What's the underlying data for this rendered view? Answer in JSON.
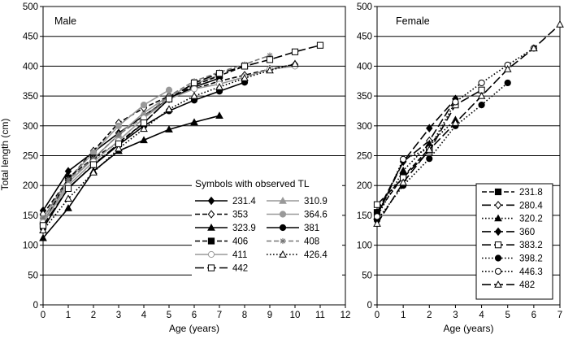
{
  "ylabel": "Total length (cm)",
  "chart_data": [
    {
      "type": "line",
      "panel_label": "Male",
      "xlabel": "Age (years)",
      "xlim": [
        0,
        12
      ],
      "ylim": [
        0,
        500
      ],
      "x_ticks": [
        0,
        1,
        2,
        3,
        4,
        5,
        6,
        7,
        8,
        9,
        10,
        11,
        12
      ],
      "y_ticks": [
        0,
        50,
        100,
        150,
        200,
        250,
        300,
        350,
        400,
        450,
        500
      ],
      "grid": "horizontal",
      "legend_title": "Symbols with observed TL",
      "legend_position": "bottom-right",
      "series": [
        {
          "name": "231.4",
          "marker": "diamond-filled",
          "dash": "solid",
          "color": "#000000",
          "x": [
            0,
            1,
            2,
            3,
            4,
            5,
            6,
            7
          ],
          "y": [
            158,
            224,
            256,
            288,
            317,
            345,
            365,
            380
          ]
        },
        {
          "name": "310.9",
          "marker": "triangle-filled",
          "dash": "solid",
          "color": "#999999",
          "x": [
            0,
            1,
            2,
            3,
            4,
            5,
            6,
            7
          ],
          "y": [
            140,
            205,
            245,
            285,
            322,
            350,
            370,
            385
          ]
        },
        {
          "name": "353",
          "marker": "diamond-open",
          "dash": "dashed",
          "color": "#000000",
          "x": [
            0,
            1,
            2,
            3,
            4,
            5,
            6,
            7,
            8,
            9,
            10
          ],
          "y": [
            152,
            210,
            258,
            305,
            330,
            350,
            362,
            375,
            385,
            395,
            403
          ]
        },
        {
          "name": "364.6",
          "marker": "circle-filled",
          "dash": "solid",
          "color": "#999999",
          "x": [
            0,
            1,
            2,
            3,
            4,
            5
          ],
          "y": [
            145,
            210,
            255,
            300,
            335,
            360
          ]
        },
        {
          "name": "323.9",
          "marker": "triangle-filled",
          "dash": "solid",
          "color": "#000000",
          "x": [
            0,
            1,
            2,
            3,
            4,
            5,
            6,
            7
          ],
          "y": [
            112,
            162,
            224,
            258,
            276,
            294,
            306,
            317
          ]
        },
        {
          "name": "381",
          "marker": "circle-filled",
          "dash": "solid",
          "color": "#000000",
          "x": [
            0,
            1,
            2,
            3,
            4,
            5,
            6,
            7,
            8
          ],
          "y": [
            128,
            196,
            234,
            268,
            300,
            325,
            343,
            358,
            373
          ]
        },
        {
          "name": "406",
          "marker": "square-filled",
          "dash": "dashed",
          "color": "#000000",
          "x": [
            0,
            1,
            2,
            3,
            4,
            5,
            6,
            7,
            8
          ],
          "y": [
            135,
            213,
            246,
            272,
            305,
            345,
            368,
            384,
            400
          ]
        },
        {
          "name": "408",
          "marker": "asterisk",
          "dash": "dashed",
          "color": "#777777",
          "x": [
            0,
            1,
            2,
            3,
            4,
            5,
            6,
            7,
            8,
            9
          ],
          "y": [
            145,
            210,
            245,
            285,
            315,
            350,
            375,
            390,
            403,
            418
          ]
        },
        {
          "name": "411",
          "marker": "circle-open",
          "dash": "solid",
          "color": "#999999",
          "x": [
            0,
            1,
            2,
            3,
            4,
            5,
            6,
            7,
            8,
            9,
            10
          ],
          "y": [
            138,
            200,
            240,
            275,
            313,
            345,
            362,
            370,
            382,
            395,
            400
          ]
        },
        {
          "name": "426.4",
          "marker": "triangle-open",
          "dash": "dotted",
          "color": "#000000",
          "x": [
            0,
            1,
            2,
            3,
            4,
            5,
            6,
            7,
            8,
            9,
            10
          ],
          "y": [
            125,
            178,
            222,
            262,
            295,
            328,
            350,
            365,
            380,
            393,
            404
          ]
        },
        {
          "name": "442",
          "marker": "square-open",
          "dash": "long-dash",
          "color": "#000000",
          "x": [
            0,
            1,
            2,
            3,
            4,
            5,
            6,
            7,
            8,
            9,
            10,
            11
          ],
          "y": [
            133,
            195,
            235,
            270,
            305,
            345,
            372,
            388,
            400,
            411,
            424,
            435
          ]
        }
      ]
    },
    {
      "type": "line",
      "panel_label": "Female",
      "xlabel": "Age (years)",
      "xlim": [
        0,
        7
      ],
      "ylim": [
        0,
        500
      ],
      "x_ticks": [
        0,
        1,
        2,
        3,
        4,
        5,
        6,
        7
      ],
      "y_ticks": [
        0,
        50,
        100,
        150,
        200,
        250,
        300,
        350,
        400,
        450,
        500
      ],
      "grid": "horizontal",
      "legend_position": "bottom-right",
      "series": [
        {
          "name": "231.8",
          "marker": "square-filled",
          "dash": "dashed",
          "color": "#000000",
          "x": [
            0,
            1,
            2
          ],
          "y": [
            155,
            215,
            262
          ]
        },
        {
          "name": "280.4",
          "marker": "diamond-open",
          "dash": "long-dash",
          "color": "#000000",
          "x": [
            0,
            1,
            2,
            3
          ],
          "y": [
            150,
            240,
            275,
            345
          ]
        },
        {
          "name": "320.2",
          "marker": "triangle-filled",
          "dash": "dotted",
          "color": "#000000",
          "x": [
            0,
            1,
            2,
            3
          ],
          "y": [
            148,
            225,
            270,
            310
          ]
        },
        {
          "name": "360",
          "marker": "diamond-filled",
          "dash": "long-dash",
          "color": "#000000",
          "x": [
            0,
            1,
            2,
            3
          ],
          "y": [
            155,
            240,
            296,
            345
          ]
        },
        {
          "name": "383.2",
          "marker": "square-open",
          "dash": "long-dash",
          "color": "#000000",
          "x": [
            0,
            1,
            2,
            3,
            4
          ],
          "y": [
            168,
            213,
            258,
            335,
            360
          ]
        },
        {
          "name": "398.2",
          "marker": "circle-filled",
          "dash": "dotted",
          "color": "#000000",
          "x": [
            0,
            1,
            2,
            3,
            4,
            5
          ],
          "y": [
            142,
            200,
            245,
            300,
            335,
            372
          ]
        },
        {
          "name": "446.3",
          "marker": "circle-open",
          "dash": "dotted",
          "color": "#000000",
          "x": [
            0,
            1,
            2,
            3,
            4,
            5,
            6
          ],
          "y": [
            148,
            244,
            262,
            340,
            372,
            402,
            430
          ]
        },
        {
          "name": "482",
          "marker": "triangle-open",
          "dash": "long-dash",
          "color": "#000000",
          "x": [
            0,
            1,
            2,
            3,
            4,
            5,
            6,
            7
          ],
          "y": [
            136,
            205,
            260,
            305,
            350,
            395,
            430,
            470
          ]
        }
      ]
    }
  ]
}
